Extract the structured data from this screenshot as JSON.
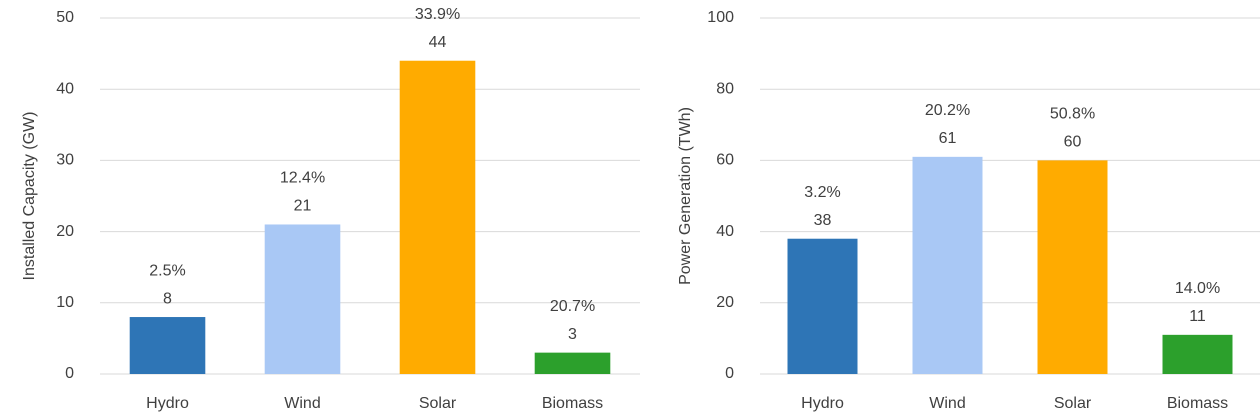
{
  "chart_data": [
    {
      "type": "bar",
      "ylabel": "Installed Capacity (GW)",
      "categories": [
        "Hydro",
        "Wind",
        "Solar",
        "Biomass"
      ],
      "values": [
        8,
        21,
        44,
        3
      ],
      "annotations": [
        "2.5%",
        "12.4%",
        "33.9%",
        "20.7%"
      ],
      "colors": [
        "#2e75b6",
        "#a9c8f5",
        "#ffab00",
        "#2ca02c"
      ],
      "ylim": [
        0,
        50
      ],
      "yticks": [
        0,
        10,
        20,
        30,
        40,
        50
      ],
      "grid": true
    },
    {
      "type": "bar",
      "ylabel": "Power Generation (TWh)",
      "categories": [
        "Hydro",
        "Wind",
        "Solar",
        "Biomass"
      ],
      "values": [
        38,
        61,
        60,
        11
      ],
      "annotations": [
        "3.2%",
        "20.2%",
        "50.8%",
        "14.0%"
      ],
      "colors": [
        "#2e75b6",
        "#a9c8f5",
        "#ffab00",
        "#2ca02c"
      ],
      "ylim": [
        0,
        100
      ],
      "yticks": [
        0,
        20,
        40,
        60,
        80,
        100
      ],
      "grid": true
    }
  ]
}
